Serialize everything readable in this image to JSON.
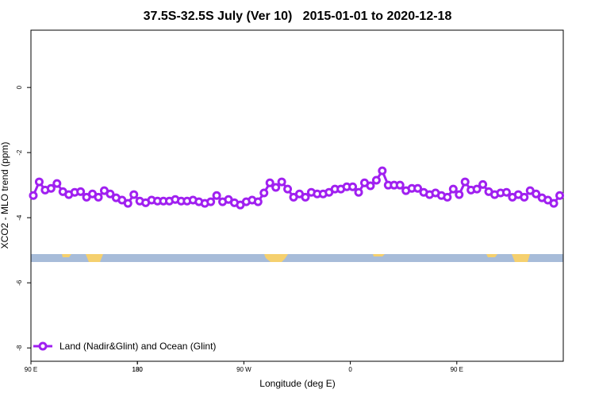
{
  "chart_data": {
    "type": "line",
    "title": "37.5S-32.5S July (Ver 10)   2015-01-01 to 2020-12-18",
    "xlabel": "Longitude (deg E)",
    "ylabel": "XCO2 - MLO trend (ppm)",
    "x": [
      92,
      97,
      102,
      107,
      112,
      117,
      122,
      127,
      132,
      137,
      142,
      147,
      152,
      157,
      162,
      167,
      172,
      177,
      182,
      187,
      192,
      197,
      202,
      207,
      212,
      217,
      222,
      227,
      232,
      237,
      242,
      247,
      252,
      257,
      262,
      267,
      272,
      277,
      282,
      287,
      292,
      297,
      302,
      307,
      312,
      317,
      322,
      327,
      332,
      337,
      342,
      347,
      352,
      357,
      362,
      367,
      372,
      377,
      382,
      387,
      392,
      397,
      402,
      407,
      412,
      417,
      422,
      427,
      432,
      437,
      442,
      447,
      452,
      457,
      462,
      467,
      472,
      477,
      482,
      487,
      492,
      497,
      502,
      507,
      512,
      517,
      522,
      527,
      532,
      537
    ],
    "series": [
      {
        "name": "Land (Nadir&Glint) and Ocean (Glint)",
        "color": "#a020f0",
        "values": [
          -3.32,
          -2.9,
          -3.15,
          -3.1,
          -2.95,
          -3.2,
          -3.29,
          -3.22,
          -3.2,
          -3.37,
          -3.27,
          -3.37,
          -3.17,
          -3.27,
          -3.39,
          -3.46,
          -3.56,
          -3.29,
          -3.49,
          -3.54,
          -3.46,
          -3.49,
          -3.49,
          -3.49,
          -3.44,
          -3.49,
          -3.49,
          -3.46,
          -3.51,
          -3.56,
          -3.51,
          -3.32,
          -3.51,
          -3.44,
          -3.54,
          -3.61,
          -3.51,
          -3.46,
          -3.51,
          -3.24,
          -2.93,
          -3.07,
          -2.9,
          -3.12,
          -3.37,
          -3.27,
          -3.37,
          -3.22,
          -3.27,
          -3.27,
          -3.22,
          -3.12,
          -3.12,
          -3.05,
          -3.05,
          -3.22,
          -2.93,
          -3.02,
          -2.85,
          -2.56,
          -3.0,
          -3.0,
          -3.0,
          -3.17,
          -3.1,
          -3.1,
          -3.22,
          -3.29,
          -3.24,
          -3.32,
          -3.37,
          -3.12,
          -3.29,
          -2.9,
          -3.15,
          -3.12,
          -2.98,
          -3.2,
          -3.29,
          -3.24,
          -3.22,
          -3.37,
          -3.29,
          -3.37,
          -3.17,
          -3.27,
          -3.39,
          -3.46,
          -3.56,
          -3.32
        ]
      }
    ],
    "xlim": [
      90,
      540
    ],
    "xticks": [
      {
        "value": 90,
        "label": "90 E"
      },
      180,
      {
        "value": 270,
        "label": "90 W"
      },
      {
        "value": 360,
        "label": "0"
      },
      {
        "value": 450,
        "label": "90 E"
      },
      180.0001
    ],
    "ylim": [
      -8.41,
      1.76
    ],
    "yticks": [
      0,
      -2,
      -4,
      -6,
      -8
    ],
    "legend": "bottom-left"
  }
}
